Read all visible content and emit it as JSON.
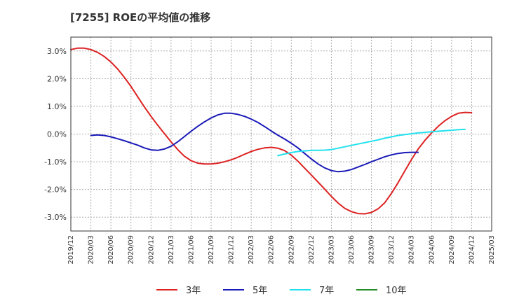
{
  "chart_data": {
    "type": "line",
    "title": "[7255]  ROEの平均値の推移",
    "xlabel": "",
    "ylabel": "",
    "ylim": [
      -3.5,
      3.5
    ],
    "y_ticks": [
      3.0,
      2.0,
      1.0,
      0.0,
      -1.0,
      -2.0,
      -3.0
    ],
    "y_tick_labels": [
      "3.0%",
      "2.0%",
      "1.0%",
      "0.0%",
      "-1.0%",
      "-2.0%",
      "-3.0%"
    ],
    "grid": true,
    "legend_position": "bottom",
    "x_tick_labels": [
      "2019/12",
      "2020/03",
      "2020/06",
      "2020/09",
      "2020/12",
      "2021/03",
      "2021/06",
      "2021/09",
      "2021/12",
      "2022/03",
      "2022/06",
      "2022/09",
      "2022/12",
      "2023/03",
      "2023/06",
      "2023/09",
      "2023/12",
      "2024/03",
      "2024/06",
      "2024/09",
      "2024/12",
      "2025/03"
    ],
    "series": [
      {
        "name": "3年",
        "color": "#dd2222",
        "start_index": 0,
        "values": [
          3.05,
          3.1,
          3.1,
          3.05,
          2.95,
          2.8,
          2.6,
          2.35,
          2.05,
          1.72,
          1.35,
          0.98,
          0.64,
          0.32,
          0.02,
          -0.28,
          -0.56,
          -0.8,
          -0.96,
          -1.05,
          -1.08,
          -1.08,
          -1.05,
          -1.0,
          -0.93,
          -0.84,
          -0.73,
          -0.63,
          -0.55,
          -0.5,
          -0.48,
          -0.51,
          -0.6,
          -0.76,
          -0.98,
          -1.23,
          -1.48,
          -1.73,
          -1.99,
          -2.25,
          -2.49,
          -2.68,
          -2.8,
          -2.87,
          -2.88,
          -2.83,
          -2.7,
          -2.48,
          -2.14,
          -1.75,
          -1.33,
          -0.92,
          -0.54,
          -0.23,
          0.04,
          0.28,
          0.48,
          0.64,
          0.75,
          0.78,
          0.77
        ]
      },
      {
        "name": "5年",
        "color": "#1a1ab8",
        "start_index": 3,
        "values": [
          -0.05,
          -0.03,
          -0.05,
          -0.1,
          -0.17,
          -0.24,
          -0.32,
          -0.4,
          -0.5,
          -0.57,
          -0.59,
          -0.54,
          -0.44,
          -0.28,
          -0.09,
          0.1,
          0.28,
          0.44,
          0.58,
          0.69,
          0.75,
          0.75,
          0.71,
          0.64,
          0.54,
          0.42,
          0.27,
          0.11,
          -0.04,
          -0.18,
          -0.33,
          -0.5,
          -0.7,
          -0.9,
          -1.08,
          -1.22,
          -1.32,
          -1.36,
          -1.34,
          -1.28,
          -1.19,
          -1.1,
          -1.0,
          -0.91,
          -0.82,
          -0.75,
          -0.7,
          -0.67,
          -0.66,
          -0.66
        ]
      },
      {
        "name": "7年",
        "color": "#22e0ee",
        "start_index": 31,
        "values": [
          -0.78,
          -0.72,
          -0.67,
          -0.63,
          -0.61,
          -0.59,
          -0.59,
          -0.58,
          -0.56,
          -0.51,
          -0.46,
          -0.41,
          -0.36,
          -0.31,
          -0.26,
          -0.21,
          -0.15,
          -0.1,
          -0.05,
          -0.02,
          0.01,
          0.04,
          0.06,
          0.08,
          0.1,
          0.12,
          0.14,
          0.16,
          0.17
        ]
      },
      {
        "name": "10年",
        "color": "#228b22",
        "start_index": 0,
        "values": []
      }
    ]
  }
}
